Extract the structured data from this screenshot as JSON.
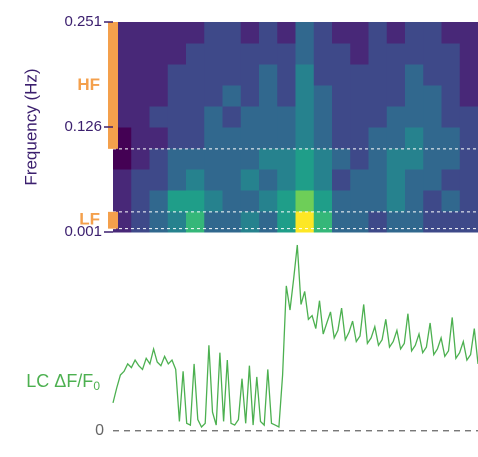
{
  "chart_data": [
    {
      "type": "heatmap",
      "ylabel": "Frequency (Hz)",
      "ylim": [
        0.001,
        0.251
      ],
      "yticks": [
        0.251,
        0.126,
        0.001
      ],
      "z": [
        [
          1,
          2,
          3,
          4,
          6,
          3,
          3,
          4,
          3,
          5,
          9,
          6,
          3,
          3,
          2,
          3,
          3,
          2,
          2,
          2
        ],
        [
          1,
          2,
          3,
          5,
          5,
          4,
          3,
          3,
          4,
          5,
          7,
          5,
          3,
          3,
          3,
          4,
          3,
          2,
          3,
          2
        ],
        [
          1,
          2,
          2,
          3,
          4,
          3,
          3,
          4,
          3,
          4,
          5,
          4,
          2,
          3,
          3,
          4,
          3,
          3,
          2,
          2
        ],
        [
          0,
          1,
          2,
          3,
          3,
          3,
          3,
          3,
          4,
          4,
          5,
          4,
          3,
          2,
          3,
          4,
          4,
          3,
          3,
          2
        ],
        [
          0,
          1,
          1,
          2,
          2,
          3,
          3,
          3,
          3,
          3,
          4,
          3,
          2,
          2,
          3,
          3,
          4,
          3,
          3,
          2
        ],
        [
          1,
          1,
          2,
          2,
          2,
          3,
          2,
          3,
          3,
          3,
          4,
          3,
          2,
          2,
          2,
          3,
          3,
          3,
          2,
          2
        ],
        [
          1,
          1,
          1,
          2,
          2,
          2,
          3,
          2,
          3,
          2,
          4,
          3,
          2,
          2,
          2,
          2,
          3,
          3,
          2,
          1
        ],
        [
          1,
          1,
          1,
          2,
          2,
          2,
          2,
          2,
          3,
          2,
          4,
          2,
          2,
          2,
          2,
          2,
          3,
          2,
          2,
          1
        ],
        [
          1,
          1,
          1,
          1,
          2,
          2,
          2,
          2,
          2,
          2,
          3,
          2,
          2,
          1,
          2,
          2,
          2,
          2,
          2,
          1
        ],
        [
          1,
          1,
          1,
          1,
          1,
          2,
          2,
          1,
          2,
          1,
          3,
          2,
          1,
          1,
          2,
          1,
          2,
          2,
          1,
          1
        ]
      ],
      "colors": [
        "#440154",
        "#482878",
        "#3e4989",
        "#31688e",
        "#26828e",
        "#1f9e89",
        "#35b779",
        "#6ece58",
        "#b5de2b",
        "#fde725"
      ],
      "bands": [
        {
          "name": "HF",
          "range": [
            0.1,
            0.251
          ],
          "color": "#f4a04c"
        },
        {
          "name": "LF",
          "range": [
            0.005,
            0.025
          ],
          "color": "#f4a04c"
        }
      ],
      "hlines": [
        0.1,
        0.025,
        0.005
      ]
    },
    {
      "type": "line",
      "ylabel": "LC ΔF/F",
      "ylabel_sub": "0",
      "color": "#4cb050",
      "ylim": [
        -0.5,
        10
      ],
      "yticks": [
        0
      ],
      "grid": true,
      "values": [
        1.5,
        2.3,
        3.0,
        3.2,
        3.6,
        3.4,
        3.8,
        3.5,
        3.3,
        3.9,
        3.6,
        4.4,
        3.7,
        3.5,
        4.0,
        3.6,
        3.8,
        3.3,
        0.5,
        3.2,
        0.4,
        0.3,
        3.6,
        0.6,
        0.2,
        0.4,
        4.6,
        1.0,
        0.3,
        4.2,
        0.5,
        3.8,
        0.4,
        0.3,
        0.6,
        2.8,
        0.4,
        3.5,
        0.3,
        2.9,
        0.5,
        0.3,
        3.3,
        0.4,
        0.3,
        0.2,
        3.0,
        7.8,
        6.5,
        8.2,
        10,
        6.8,
        7.5,
        6.0,
        6.2,
        5.5,
        7.0,
        5.2,
        5.8,
        6.4,
        5.0,
        5.4,
        6.6,
        4.9,
        5.3,
        5.9,
        4.8,
        5.1,
        6.8,
        4.7,
        5.0,
        5.6,
        4.6,
        4.9,
        6.0,
        4.5,
        4.8,
        5.4,
        4.4,
        4.7,
        6.3,
        4.3,
        4.6,
        5.2,
        4.2,
        4.5,
        5.8,
        4.1,
        4.4,
        5.0,
        4.0,
        4.3,
        6.1,
        3.9,
        4.2,
        4.8,
        3.8,
        4.1,
        5.5,
        3.6
      ]
    }
  ]
}
